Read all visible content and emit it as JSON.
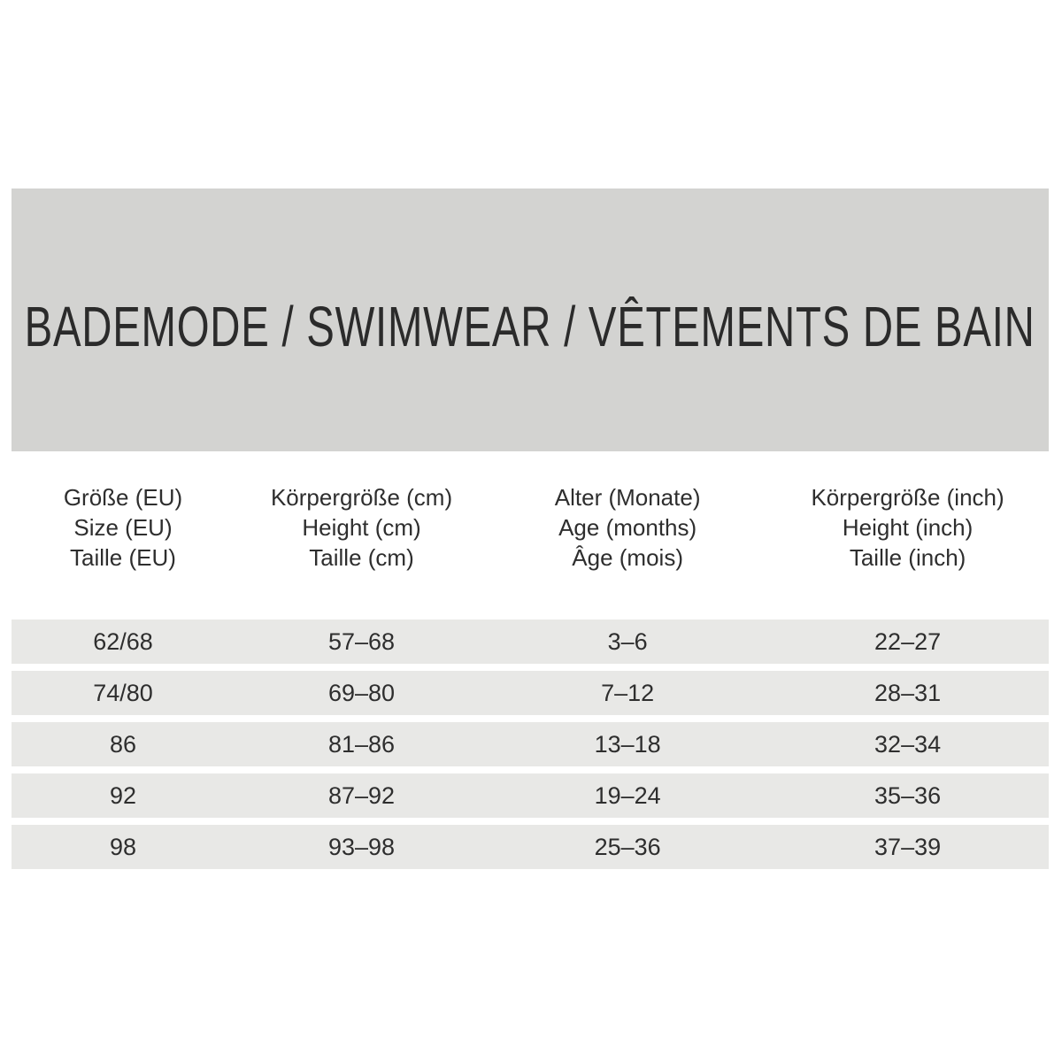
{
  "colors": {
    "background": "#ffffff",
    "banner": "#d3d3d1",
    "row_band": "#e8e8e6",
    "text": "#2e2e2e"
  },
  "chart_data": {
    "type": "table",
    "title": "BADEMODE / SWIMWEAR / VÊTEMENTS DE BAIN",
    "columns": [
      {
        "lines": [
          "Größe (EU)",
          "Size (EU)",
          "Taille (EU)"
        ]
      },
      {
        "lines": [
          "Körpergröße (cm)",
          "Height (cm)",
          "Taille (cm)"
        ]
      },
      {
        "lines": [
          "Alter (Monate)",
          "Age (months)",
          "Âge (mois)"
        ]
      },
      {
        "lines": [
          "Körpergröße (inch)",
          "Height (inch)",
          "Taille (inch)"
        ]
      }
    ],
    "rows": [
      [
        "62/68",
        "57–68",
        "3–6",
        "22–27"
      ],
      [
        "74/80",
        "69–80",
        "7–12",
        "28–31"
      ],
      [
        "86",
        "81–86",
        "13–18",
        "32–34"
      ],
      [
        "92",
        "87–92",
        "19–24",
        "35–36"
      ],
      [
        "98",
        "93–98",
        "25–36",
        "37–39"
      ]
    ]
  }
}
